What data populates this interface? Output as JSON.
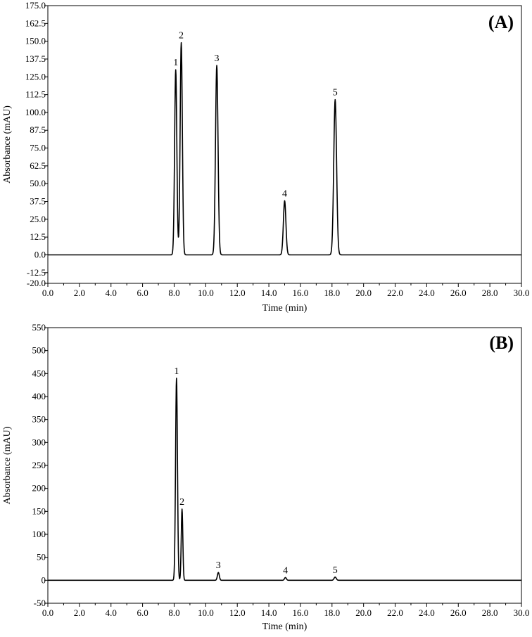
{
  "chart_data": [
    {
      "type": "line",
      "panel_label": "(A)",
      "xlabel": "Time (min)",
      "ylabel": "Absorbance (mAU)",
      "xlim": [
        0.0,
        30.0
      ],
      "ylim": [
        -20.0,
        175.0
      ],
      "x_ticks": [
        "0.0",
        "2.0",
        "4.0",
        "6.0",
        "8.0",
        "10.0",
        "12.0",
        "14.0",
        "16.0",
        "18.0",
        "20.0",
        "22.0",
        "24.0",
        "26.0",
        "28.0",
        "30.0"
      ],
      "y_ticks": [
        "175.0",
        "162.5",
        "150.0",
        "137.5",
        "125.0",
        "112.5",
        "100.0",
        "87.5",
        "75.0",
        "62.5",
        "50.0",
        "37.5",
        "25.0",
        "12.5",
        "0.0",
        "-12.5",
        "-20.0"
      ],
      "baseline": 0,
      "peaks": [
        {
          "label": "1",
          "time": 8.1,
          "height": 130,
          "width": 0.07
        },
        {
          "label": "2",
          "time": 8.45,
          "height": 149,
          "width": 0.07
        },
        {
          "label": "3",
          "time": 10.7,
          "height": 133,
          "width": 0.08
        },
        {
          "label": "4",
          "time": 15.0,
          "height": 38,
          "width": 0.08
        },
        {
          "label": "5",
          "time": 18.2,
          "height": 109,
          "width": 0.09
        }
      ]
    },
    {
      "type": "line",
      "panel_label": "(B)",
      "xlabel": "Time (min)",
      "ylabel": "Absorbance (mAU)",
      "xlim": [
        0.0,
        30.0
      ],
      "ylim": [
        -50,
        550
      ],
      "x_ticks": [
        "0.0",
        "2.0",
        "4.0",
        "6.0",
        "8.0",
        "10.0",
        "12.0",
        "14.0",
        "16.0",
        "18.0",
        "20.0",
        "22.0",
        "24.0",
        "26.0",
        "28.0",
        "30.0"
      ],
      "y_ticks": [
        "550",
        "500",
        "450",
        "400",
        "350",
        "300",
        "250",
        "200",
        "150",
        "100",
        "50",
        "0",
        "-50"
      ],
      "baseline": 0,
      "peaks": [
        {
          "label": "1",
          "time": 8.15,
          "height": 440,
          "width": 0.06
        },
        {
          "label": "2",
          "time": 8.5,
          "height": 155,
          "width": 0.05
        },
        {
          "label": "3",
          "time": 10.8,
          "height": 17,
          "width": 0.06
        },
        {
          "label": "4",
          "time": 15.05,
          "height": 6,
          "width": 0.06
        },
        {
          "label": "5",
          "time": 18.2,
          "height": 7,
          "width": 0.07
        }
      ]
    }
  ]
}
